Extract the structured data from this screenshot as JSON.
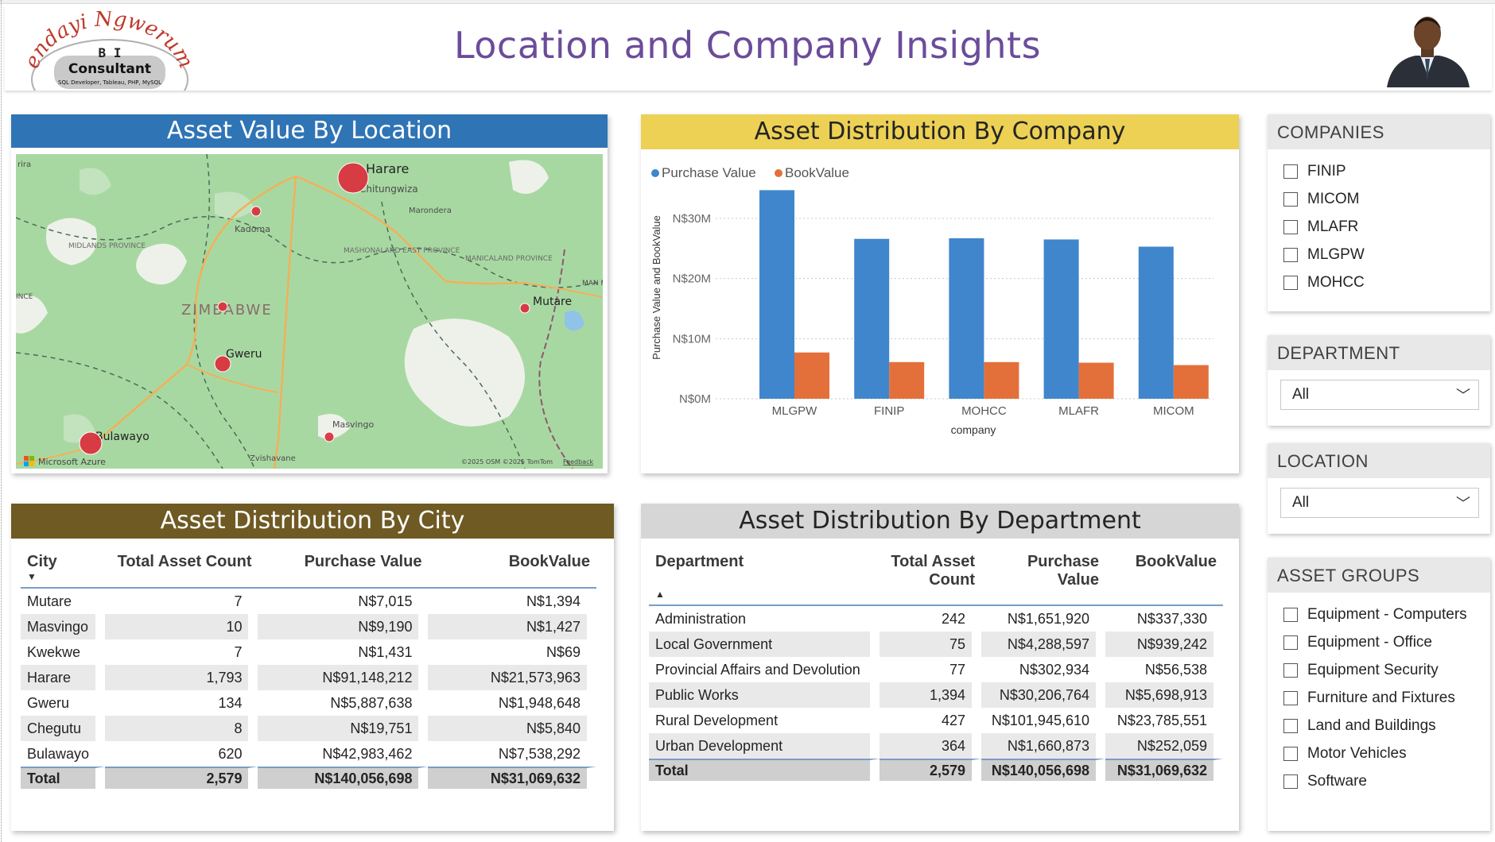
{
  "header": {
    "title": "Location and Company Insights",
    "logo": {
      "name": "Tendayi Ngwerume",
      "line1": "B I",
      "line2": "Consultant",
      "line3": "SQL Developer, Tableau, PHP, MySQL"
    }
  },
  "map_card": {
    "title": "Asset Value By Location",
    "place_labels": [
      "Harare",
      "Chitungwiza",
      "Marondera",
      "Kadoma",
      "MIDLANDS PROVINCE",
      "MASHONALAND EAST PROVINCE",
      "MANICALAND PROVINCE",
      "ZIMBABWE",
      "Mutare",
      "Gweru",
      "Masvingo",
      "Bulawayo",
      "Zvishavane",
      "rira",
      "INCE",
      "MAN PROV"
    ],
    "attribution": "Microsoft Azure",
    "copyright": "©2025 OSM ©2025 TomTom",
    "feedback": "Feedback",
    "colors": {
      "land": "#a7d7a0",
      "water": "#8fc3e8",
      "bubble": "#d9343f"
    }
  },
  "company_chart": {
    "title": "Asset Distribution By Company",
    "legend": [
      "Purchase Value",
      "BookValue"
    ],
    "colors": {
      "purchase": "#3f86cc",
      "book": "#e3703a"
    }
  },
  "chart_data": {
    "type": "bar",
    "title": "Asset Distribution By Company",
    "categories": [
      "MLGPW",
      "FINIP",
      "MOHCC",
      "MLAFR",
      "MICOM"
    ],
    "series": [
      {
        "name": "Purchase Value",
        "values": [
          34700000,
          26600000,
          26700000,
          26500000,
          25300000
        ]
      },
      {
        "name": "BookValue",
        "values": [
          7700000,
          6100000,
          6100000,
          6000000,
          5600000
        ]
      }
    ],
    "xlabel": "company",
    "ylabel": "Purchase Value and BookValue",
    "yticks": [
      "N$0M",
      "N$10M",
      "N$20M",
      "N$30M"
    ],
    "ylim": [
      0,
      37000000
    ],
    "legend_position": "top-left",
    "grid": true
  },
  "city_table": {
    "title": "Asset Distribution By City",
    "columns": [
      "City",
      "Total Asset Count",
      "Purchase Value",
      "BookValue"
    ],
    "rows": [
      [
        "Mutare",
        "7",
        "N$7,015",
        "N$1,394"
      ],
      [
        "Masvingo",
        "10",
        "N$9,190",
        "N$1,427"
      ],
      [
        "Kwekwe",
        "7",
        "N$1,431",
        "N$69"
      ],
      [
        "Harare",
        "1,793",
        "N$91,148,212",
        "N$21,573,963"
      ],
      [
        "Gweru",
        "134",
        "N$5,887,638",
        "N$1,948,648"
      ],
      [
        "Chegutu",
        "8",
        "N$19,751",
        "N$5,840"
      ],
      [
        "Bulawayo",
        "620",
        "N$42,983,462",
        "N$7,538,292"
      ]
    ],
    "total": [
      "Total",
      "2,579",
      "N$140,056,698",
      "N$31,069,632"
    ]
  },
  "dept_table": {
    "title": "Asset Distribution By Department",
    "columns": [
      "Department",
      "Total Asset Count",
      "Purchase Value",
      "BookValue"
    ],
    "rows": [
      [
        "Administration",
        "242",
        "N$1,651,920",
        "N$337,330"
      ],
      [
        "Local Government",
        "75",
        "N$4,288,597",
        "N$939,242"
      ],
      [
        "Provincial Affairs and Devolution",
        "77",
        "N$302,934",
        "N$56,538"
      ],
      [
        "Public Works",
        "1,394",
        "N$30,206,764",
        "N$5,698,913"
      ],
      [
        "Rural Development",
        "427",
        "N$101,945,610",
        "N$23,785,551"
      ],
      [
        "Urban Development",
        "364",
        "N$1,660,873",
        "N$252,059"
      ]
    ],
    "total": [
      "Total",
      "2,579",
      "N$140,056,698",
      "N$31,069,632"
    ]
  },
  "slicers": {
    "companies": {
      "title": "COMPANIES",
      "items": [
        "FINIP",
        "MICOM",
        "MLAFR",
        "MLGPW",
        "MOHCC"
      ]
    },
    "department": {
      "title": "DEPARTMENT",
      "value": "All"
    },
    "location": {
      "title": "LOCATION",
      "value": "All"
    },
    "asset_groups": {
      "title": "ASSET GROUPS",
      "items": [
        "Equipment - Computers",
        "Equipment - Office",
        "Equipment Security",
        "Furniture and Fixtures",
        "Land and Buildings",
        "Motor Vehicles",
        "Software"
      ]
    }
  }
}
